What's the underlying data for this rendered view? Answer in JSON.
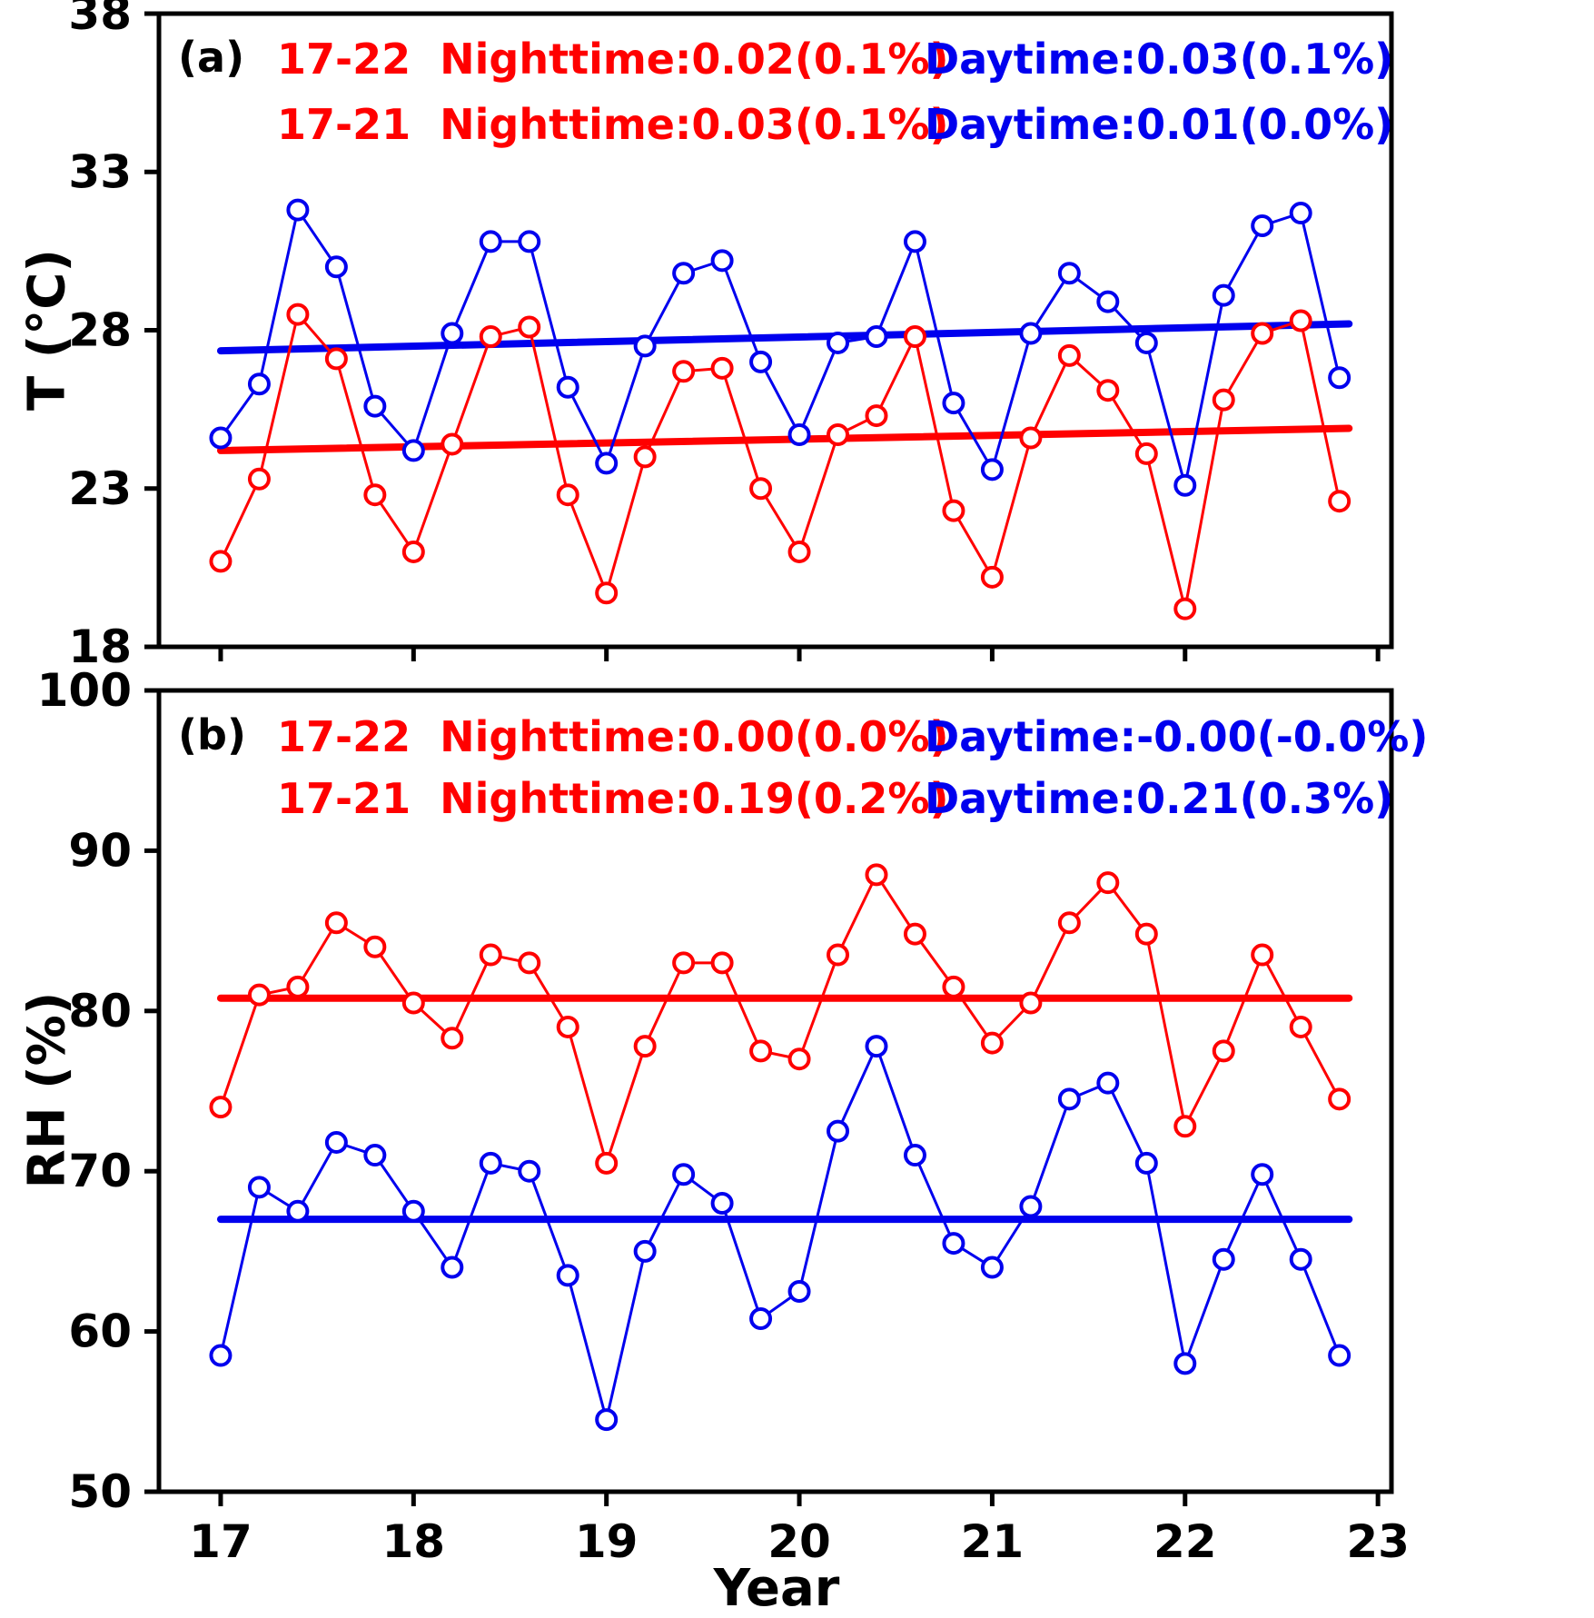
{
  "figure": {
    "xlabel": "Year",
    "colors": {
      "nighttime": "#ff0000",
      "daytime": "#0000ee",
      "axis": "#000000",
      "marker_fill": "#ffffff"
    }
  },
  "chart_data": [
    {
      "type": "line",
      "panel": "a",
      "panel_label": "(a)",
      "ylabel": "T (°C)",
      "xlim": [
        16.68,
        23.07
      ],
      "ylim": [
        18,
        38
      ],
      "yticks": [
        18,
        23,
        28,
        33,
        38
      ],
      "xticks": [
        17,
        18,
        19,
        20,
        21,
        22,
        23
      ],
      "grid": false,
      "x": [
        17.0,
        17.2,
        17.4,
        17.6,
        17.8,
        18.0,
        18.2,
        18.4,
        18.6,
        18.8,
        19.0,
        19.2,
        19.4,
        19.6,
        19.8,
        20.0,
        20.2,
        20.4,
        20.6,
        20.8,
        21.0,
        21.2,
        21.4,
        21.6,
        21.8,
        22.0,
        22.2,
        22.4,
        22.6,
        22.8
      ],
      "series": [
        {
          "name": "Nighttime",
          "color": "#ff0000",
          "values": [
            20.7,
            23.3,
            28.5,
            27.1,
            22.8,
            21.0,
            24.4,
            27.8,
            28.1,
            22.8,
            19.7,
            24.0,
            26.7,
            26.8,
            23.0,
            21.0,
            24.7,
            25.3,
            27.8,
            22.3,
            20.2,
            24.6,
            27.2,
            26.1,
            24.1,
            19.2,
            25.8,
            27.9,
            28.3,
            22.6
          ]
        },
        {
          "name": "Daytime",
          "color": "#0000ee",
          "values": [
            24.6,
            26.3,
            31.8,
            30.0,
            25.6,
            24.2,
            27.9,
            30.8,
            30.8,
            26.2,
            23.8,
            27.5,
            29.8,
            30.2,
            27.0,
            24.7,
            27.6,
            27.8,
            30.8,
            25.7,
            23.6,
            27.9,
            29.8,
            28.9,
            27.6,
            23.1,
            29.1,
            31.3,
            31.7,
            26.5
          ]
        }
      ],
      "trend_lines": [
        {
          "name": "nighttime-trend",
          "color": "#ff0000",
          "x": [
            17.0,
            22.85
          ],
          "y": [
            24.2,
            24.9
          ]
        },
        {
          "name": "daytime-trend",
          "color": "#0000ee",
          "x": [
            17.0,
            22.85
          ],
          "y": [
            27.35,
            28.2
          ]
        }
      ],
      "annotations": {
        "row1_night": "17-22  Nighttime:0.02(0.1%)",
        "row1_day": "Daytime:0.03(0.1%)",
        "row2_night": "17-21  Nighttime:0.03(0.1%)",
        "row2_day": "Daytime:0.01(0.0%)"
      }
    },
    {
      "type": "line",
      "panel": "b",
      "panel_label": "(b)",
      "ylabel": "RH (%)",
      "xlim": [
        16.68,
        23.07
      ],
      "ylim": [
        50,
        100
      ],
      "yticks": [
        50,
        60,
        70,
        80,
        90,
        100
      ],
      "xticks": [
        17,
        18,
        19,
        20,
        21,
        22,
        23
      ],
      "grid": false,
      "x": [
        17.0,
        17.2,
        17.4,
        17.6,
        17.8,
        18.0,
        18.2,
        18.4,
        18.6,
        18.8,
        19.0,
        19.2,
        19.4,
        19.6,
        19.8,
        20.0,
        20.2,
        20.4,
        20.6,
        20.8,
        21.0,
        21.2,
        21.4,
        21.6,
        21.8,
        22.0,
        22.2,
        22.4,
        22.6,
        22.8
      ],
      "series": [
        {
          "name": "Nighttime",
          "color": "#ff0000",
          "values": [
            74.0,
            81.0,
            81.5,
            85.5,
            84.0,
            80.5,
            78.3,
            83.5,
            83.0,
            79.0,
            70.5,
            77.8,
            83.0,
            83.0,
            77.5,
            77.0,
            83.5,
            88.5,
            84.8,
            81.5,
            78.0,
            80.5,
            85.5,
            88.0,
            84.8,
            72.8,
            77.5,
            83.5,
            79.0,
            74.5
          ]
        },
        {
          "name": "Daytime",
          "color": "#0000ee",
          "values": [
            58.5,
            69.0,
            67.5,
            71.8,
            71.0,
            67.5,
            64.0,
            70.5,
            70.0,
            63.5,
            54.5,
            65.0,
            69.8,
            68.0,
            60.8,
            62.5,
            72.5,
            77.8,
            71.0,
            65.5,
            64.0,
            67.8,
            74.5,
            75.5,
            70.5,
            58.0,
            64.5,
            69.8,
            64.5,
            58.5
          ]
        }
      ],
      "trend_lines": [
        {
          "name": "nighttime-trend",
          "color": "#ff0000",
          "x": [
            17.0,
            22.85
          ],
          "y": [
            80.8,
            80.8
          ]
        },
        {
          "name": "daytime-trend",
          "color": "#0000ee",
          "x": [
            17.0,
            22.85
          ],
          "y": [
            67.0,
            67.0
          ]
        }
      ],
      "annotations": {
        "row1_night": "17-22  Nighttime:0.00(0.0%)",
        "row1_day": "Daytime:-0.00(-0.0%)",
        "row2_night": "17-21  Nighttime:0.19(0.2%)",
        "row2_day": "Daytime:0.21(0.3%)"
      }
    }
  ]
}
